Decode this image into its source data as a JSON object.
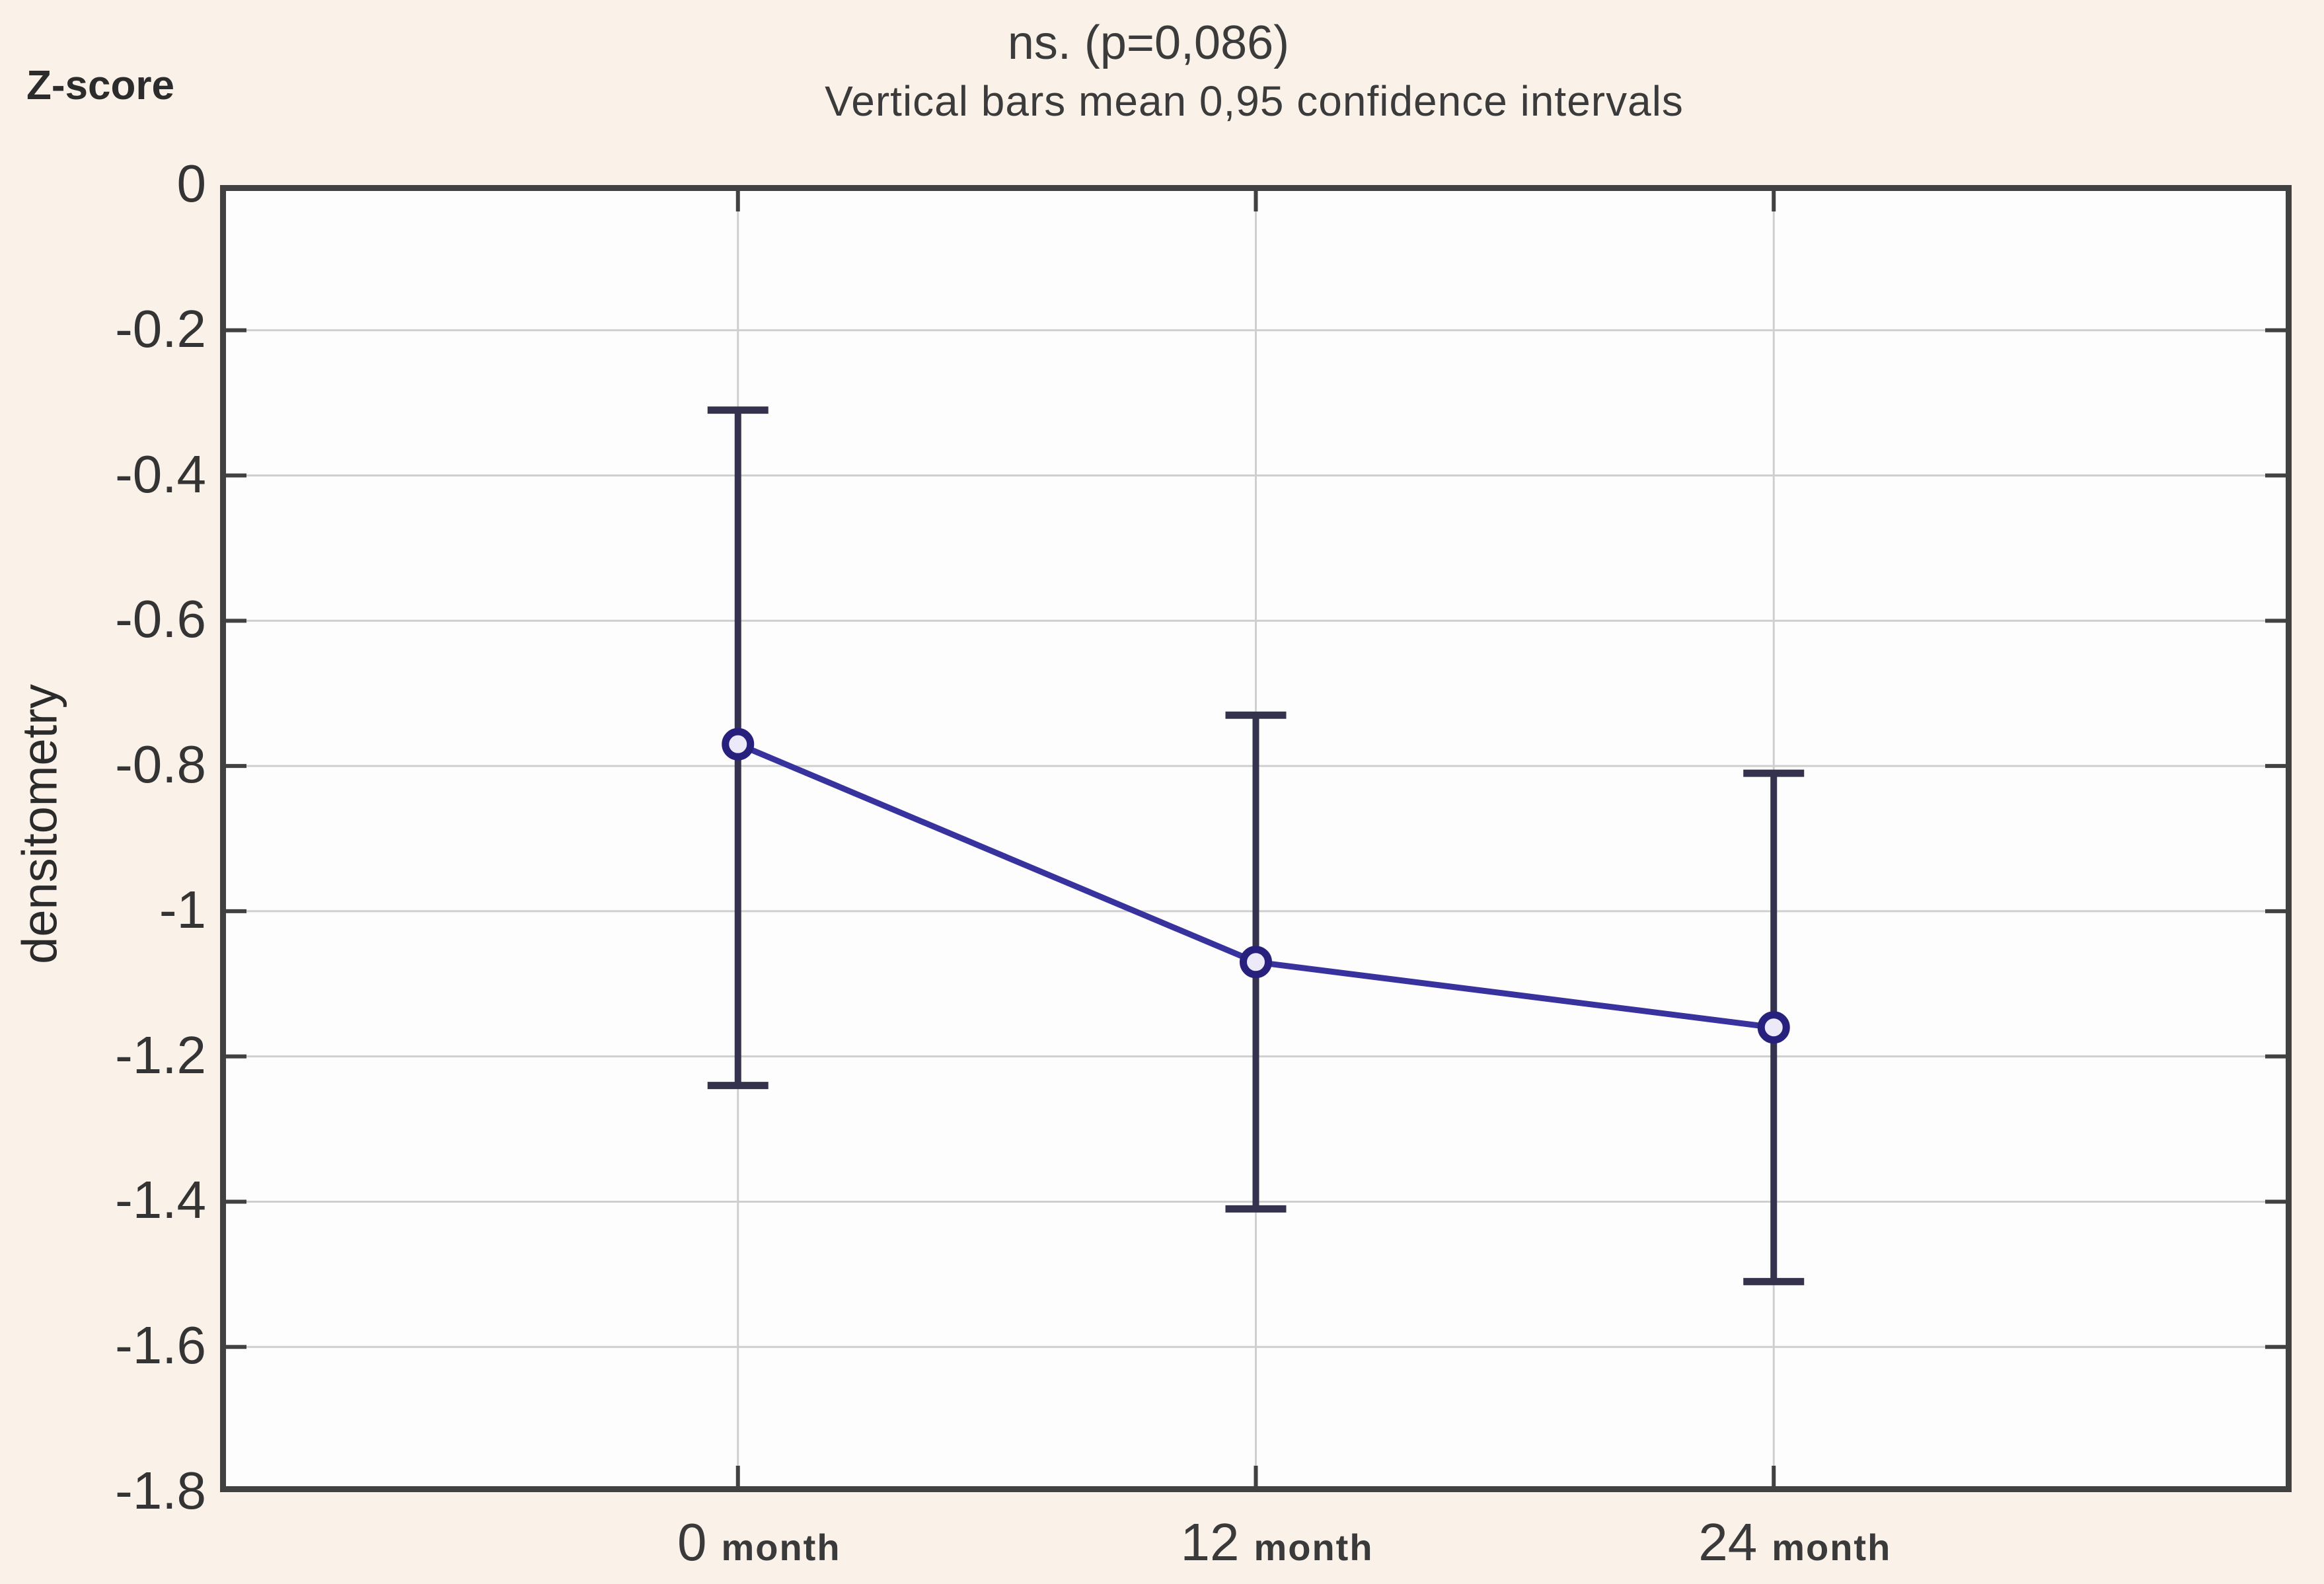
{
  "header": {
    "title_line1": "ns. (p=0,086)",
    "title_line2": "Vertical bars mean 0,95 confidence intervals",
    "y_axis_unit_label": "Z-score"
  },
  "chart_data": {
    "type": "line",
    "title": "ns. (p=0,086)",
    "subtitle": "Vertical bars mean 0,95 confidence intervals",
    "ylabel": "densitometry",
    "y_axis_unit_label": "Z-score",
    "categories": [
      "0 month",
      "12 month",
      "24 month"
    ],
    "x_tick_numbers": [
      "0",
      "12",
      "24"
    ],
    "x_tick_unit": "month",
    "series": [
      {
        "name": "densitometry Z-score mean",
        "values": [
          -0.77,
          -1.07,
          -1.16
        ],
        "ci_high": [
          -0.31,
          -0.73,
          -0.81
        ],
        "ci_low": [
          -1.24,
          -1.41,
          -1.51
        ]
      }
    ],
    "ylim": [
      -1.8,
      0
    ],
    "yticks": [
      0,
      -0.2,
      -0.4,
      -0.6,
      -0.8,
      -1,
      -1.2,
      -1.4,
      -1.6,
      -1.8
    ],
    "ytick_labels": [
      "0",
      "-0.2",
      "-0.4",
      "-0.6",
      "-0.8",
      "-1",
      "-1.2",
      "-1.4",
      "-1.6",
      "-1.8"
    ],
    "grid": true,
    "error_bars": "0.95 confidence intervals",
    "colors": {
      "page_bg": "#faf2e8",
      "plot_bg": "#fdfdfd",
      "frame": "#414141",
      "gridline": "#cfcfcf",
      "tick": "#414141",
      "series_line": "#37329e",
      "marker_ring": "#27217d",
      "marker_fill": "#eceaf8",
      "error_bar": "#35324e",
      "text": "#3b3b3b"
    }
  }
}
